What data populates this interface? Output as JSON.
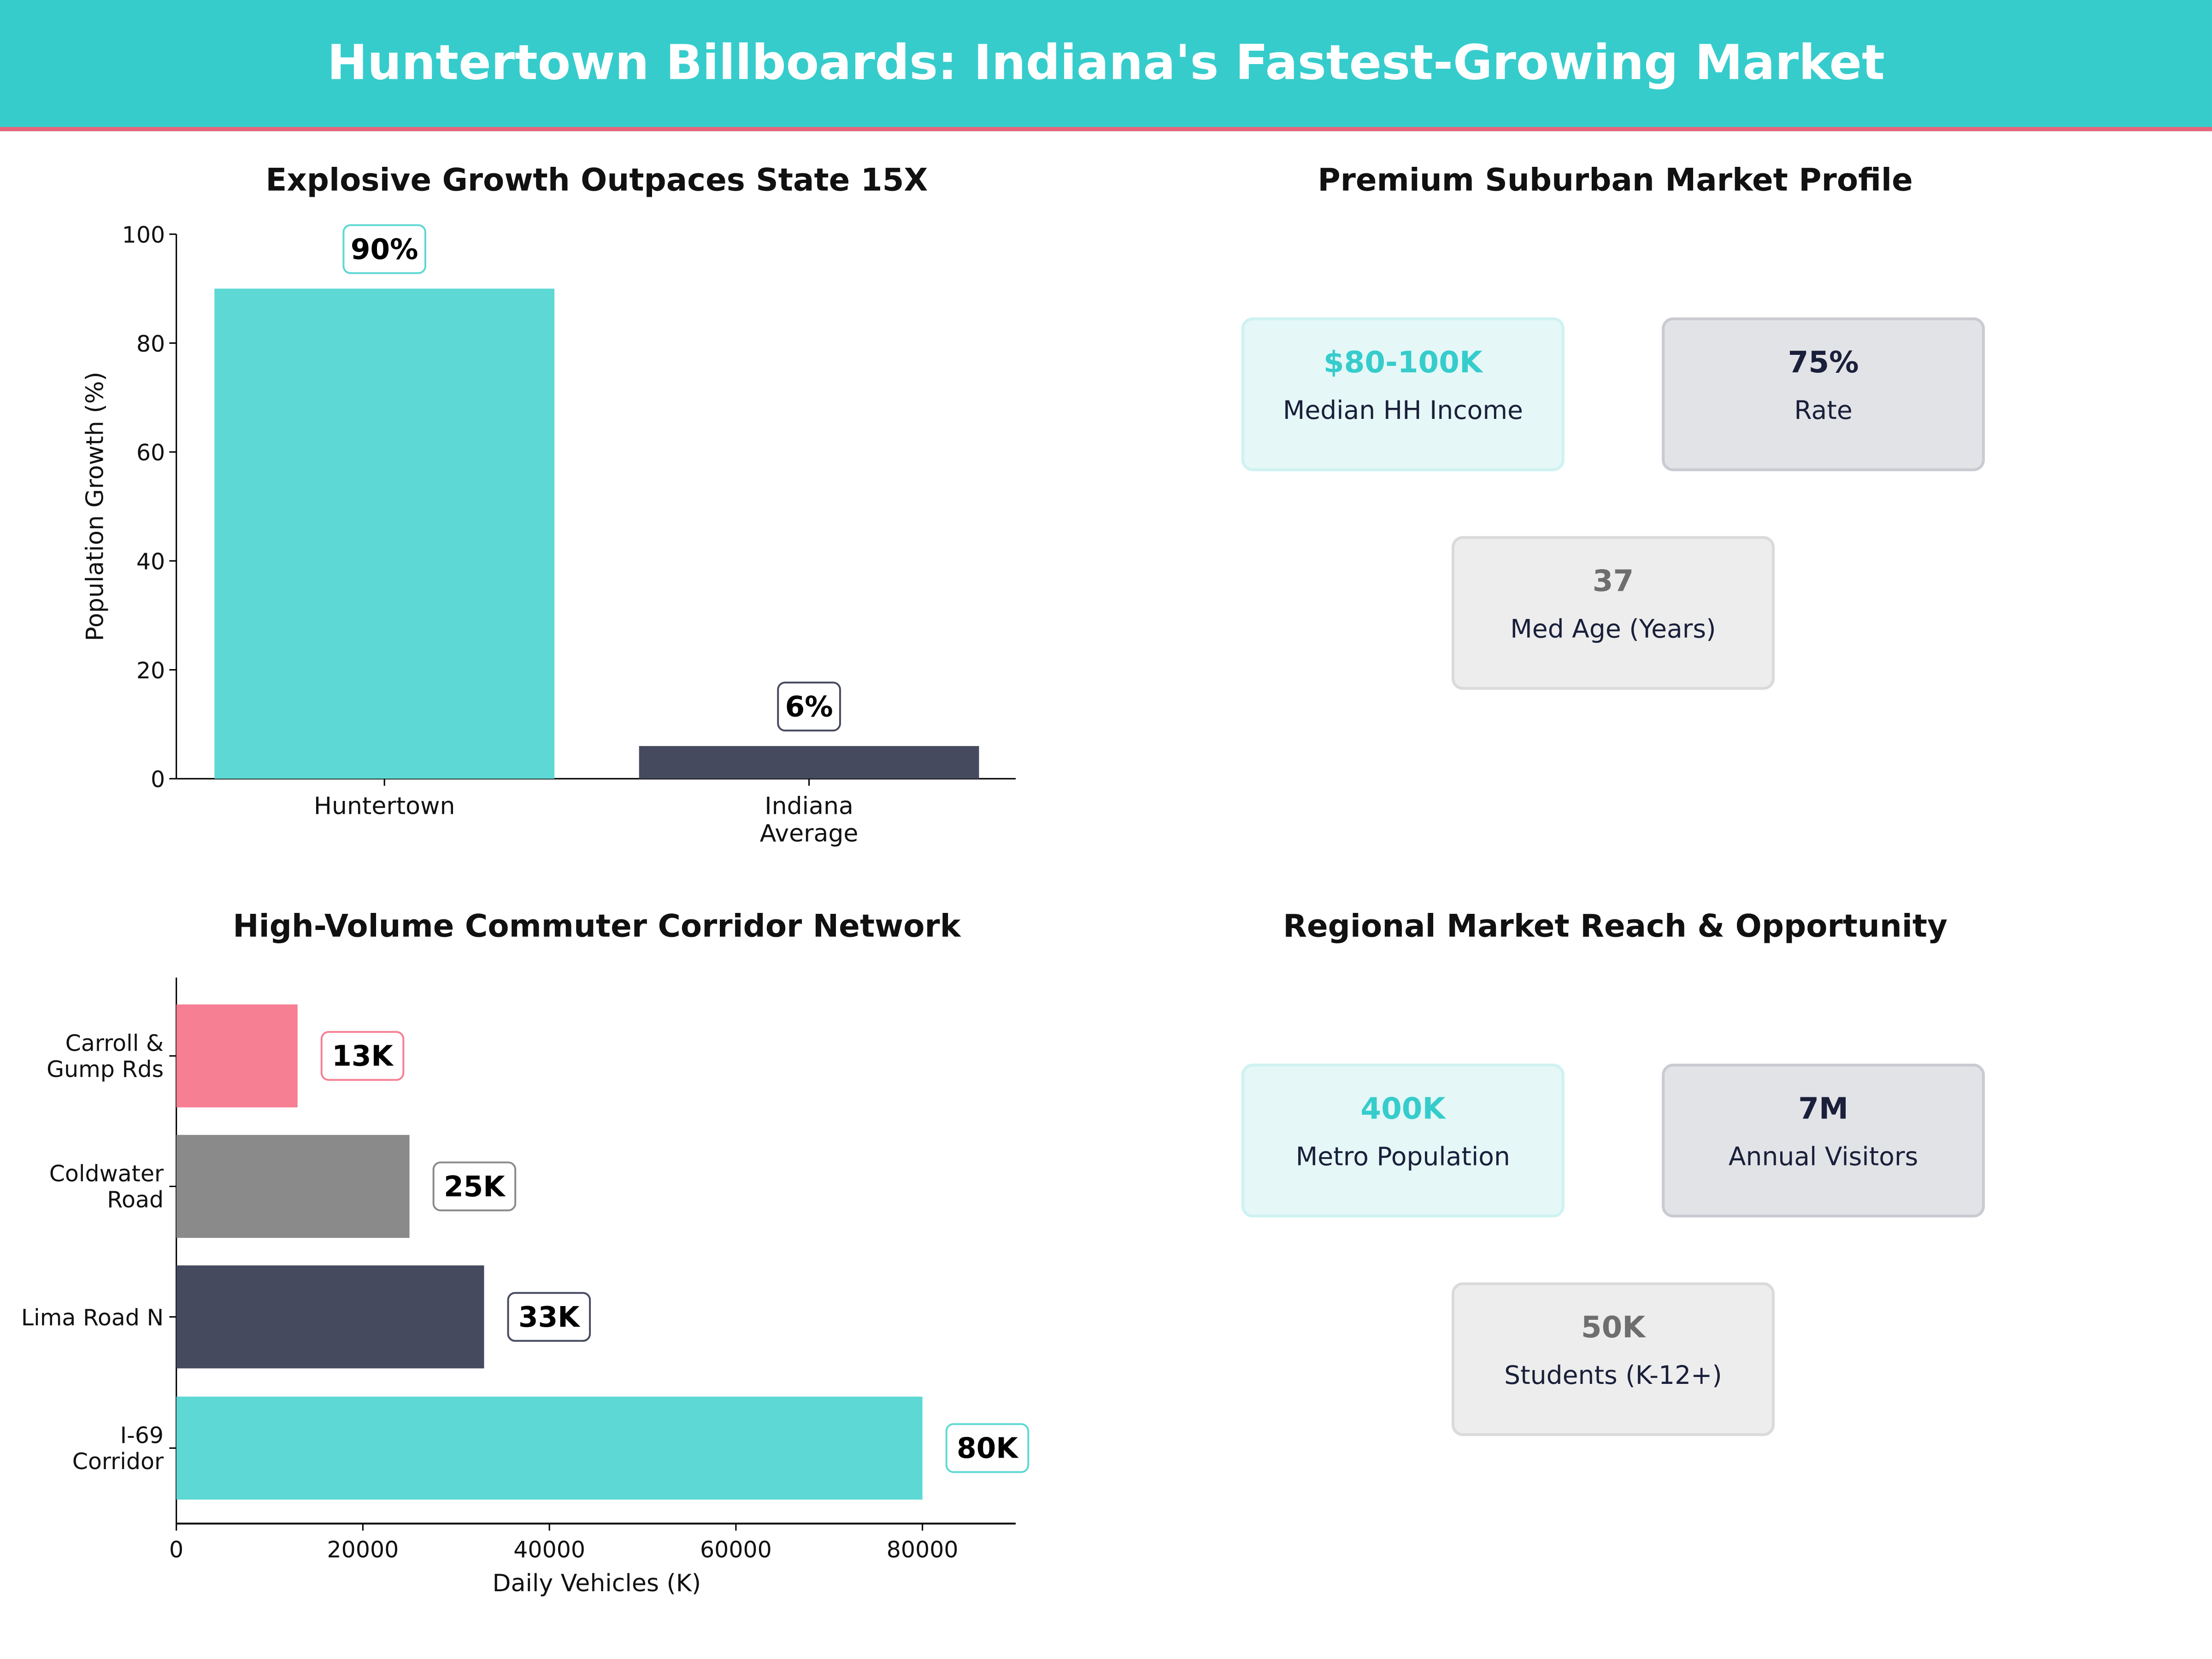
{
  "header": {
    "title": "Huntertown Billboards: Indiana's Fastest-Growing Market"
  },
  "colors": {
    "teal": "#5DD8D4",
    "navy": "#464A5E",
    "gray": "#8A8A8A",
    "pink": "#F67F93",
    "header_bg": "#36CCCC",
    "header_line": "#E8647A"
  },
  "chart_data": [
    {
      "type": "bar",
      "title": "Explosive Growth Outpaces State 15X",
      "ylabel": "Population Growth (%)",
      "xlabel": "",
      "categories": [
        "Huntertown",
        "Indiana\nAverage"
      ],
      "values": [
        90,
        6
      ],
      "data_labels": [
        "90%",
        "6%"
      ],
      "colors": [
        "#5DD8D4",
        "#464A5E"
      ],
      "ylim": [
        0,
        100
      ],
      "yticks": [
        0,
        20,
        40,
        60,
        80,
        100
      ],
      "grid": false
    },
    {
      "type": "bar",
      "orientation": "horizontal",
      "title": "High-Volume Commuter Corridor Network",
      "xlabel": "Daily Vehicles (K)",
      "ylabel": "",
      "categories": [
        "Carroll &\nGump Rds",
        "Coldwater\nRoad",
        "Lima Road N",
        "I-69\nCorridor"
      ],
      "values": [
        13000,
        25000,
        33000,
        80000
      ],
      "data_labels": [
        "13K",
        "25K",
        "33K",
        "80K"
      ],
      "colors": [
        "#F67F93",
        "#8A8A8A",
        "#464A5E",
        "#5DD8D4"
      ],
      "xlim": [
        0,
        90000
      ],
      "xticks": [
        0,
        20000,
        40000,
        60000,
        80000
      ],
      "grid": false
    }
  ],
  "profile": {
    "title": "Premium Suburban Market Profile",
    "cards": [
      {
        "value": "$80-100K",
        "label": "Median HH Income"
      },
      {
        "value": "75%",
        "label": "Rate"
      },
      {
        "value": "37",
        "label": "Med Age (Years)"
      }
    ]
  },
  "reach": {
    "title": "Regional Market Reach & Opportunity",
    "cards": [
      {
        "value": "400K",
        "label": "Metro Population"
      },
      {
        "value": "7M",
        "label": "Annual Visitors"
      },
      {
        "value": "50K",
        "label": "Students (K-12+)"
      }
    ]
  }
}
